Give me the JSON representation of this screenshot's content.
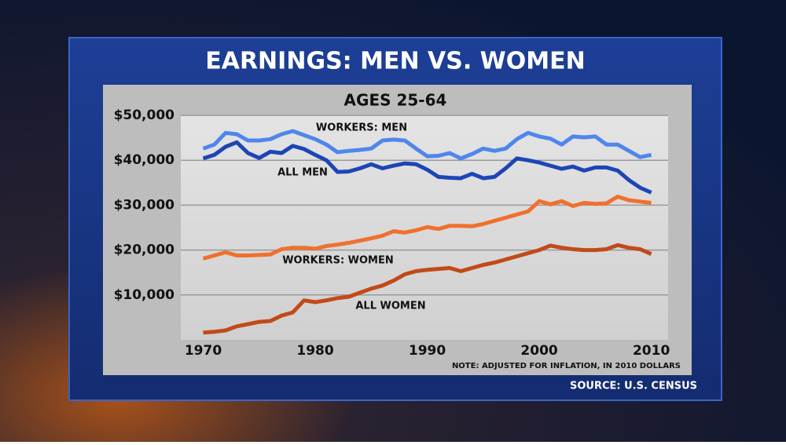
{
  "chart_data": {
    "type": "line",
    "title": "EARNINGS: MEN VS. WOMEN",
    "subtitle": "AGES 25-64",
    "note": "NOTE: ADJUSTED FOR INFLATION, IN 2010 DOLLARS",
    "source": "SOURCE: U.S. CENSUS",
    "x": [
      1970,
      1971,
      1972,
      1973,
      1974,
      1975,
      1976,
      1977,
      1978,
      1979,
      1980,
      1981,
      1982,
      1983,
      1984,
      1985,
      1986,
      1987,
      1988,
      1989,
      1990,
      1991,
      1992,
      1993,
      1994,
      1995,
      1996,
      1997,
      1998,
      1999,
      2000,
      2001,
      2002,
      2003,
      2004,
      2005,
      2006,
      2007,
      2008,
      2009,
      2010
    ],
    "xlim": [
      1968,
      2011.5
    ],
    "xticks": [
      1970,
      1980,
      1990,
      2000,
      2010
    ],
    "ylim": [
      0,
      50000
    ],
    "yticks": [
      {
        "value": 10000,
        "label": "$10,000"
      },
      {
        "value": 20000,
        "label": "$20,000"
      },
      {
        "value": 30000,
        "label": "$30,000"
      },
      {
        "value": 40000,
        "label": "$40,000"
      },
      {
        "value": 50000,
        "label": "$50,000"
      }
    ],
    "grid": true,
    "series": [
      {
        "name": "WORKERS: MEN",
        "color": "#4f86ec",
        "values": [
          42600,
          43500,
          46100,
          45800,
          44400,
          44400,
          44700,
          45800,
          46500,
          45600,
          44700,
          43500,
          41800,
          42100,
          42300,
          42600,
          44400,
          44600,
          44400,
          42600,
          40900,
          41000,
          41600,
          40400,
          41400,
          42600,
          42100,
          42600,
          44700,
          46100,
          45300,
          44800,
          43500,
          45300,
          45100,
          45300,
          43500,
          43500,
          42100,
          40700,
          41200
        ]
      },
      {
        "name": "ALL MEN",
        "color": "#1d45b5",
        "values": [
          40400,
          41200,
          43000,
          44000,
          41600,
          40500,
          41900,
          41600,
          43200,
          42500,
          41200,
          40000,
          37400,
          37500,
          38200,
          39100,
          38200,
          38800,
          39300,
          39100,
          37900,
          36300,
          36100,
          36000,
          37000,
          36000,
          36300,
          38200,
          40400,
          40000,
          39500,
          38800,
          38100,
          38600,
          37700,
          38400,
          38400,
          37700,
          35600,
          33900,
          32800
        ]
      },
      {
        "name": "WORKERS: WOMEN",
        "color": "#f0702e",
        "values": [
          18100,
          18800,
          19500,
          18800,
          18800,
          18900,
          19000,
          20200,
          20500,
          20500,
          20300,
          20900,
          21200,
          21600,
          22100,
          22600,
          23200,
          24200,
          23900,
          24400,
          25100,
          24700,
          25400,
          25400,
          25300,
          25800,
          26500,
          27200,
          27900,
          28600,
          30900,
          30200,
          30900,
          29800,
          30500,
          30300,
          30400,
          31900,
          31100,
          30800,
          30500
        ]
      },
      {
        "name": "ALL WOMEN",
        "color": "#c24a18",
        "values": [
          1600,
          1800,
          2100,
          3000,
          3500,
          4000,
          4200,
          5400,
          6100,
          8800,
          8400,
          8800,
          9300,
          9600,
          10500,
          11400,
          12100,
          13200,
          14600,
          15300,
          15600,
          15800,
          16000,
          15300,
          16000,
          16700,
          17200,
          17900,
          18600,
          19300,
          20000,
          21000,
          20500,
          20200,
          20000,
          20000,
          20200,
          21100,
          20500,
          20200,
          19100
        ]
      }
    ]
  }
}
